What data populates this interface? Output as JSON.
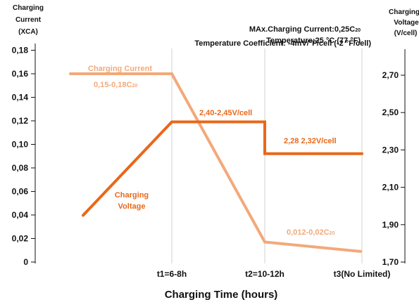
{
  "chart_data": {
    "type": "line",
    "y_left_label": [
      "Charging",
      "Current",
      "(XCA)"
    ],
    "y_right_label": [
      "Charging",
      "Voltage",
      "(V/cell)"
    ],
    "xlabel": "Charging Time (hours)",
    "x_ticks": [
      "t1=6-8h",
      "t2=10-12h",
      "t3(No Limited)"
    ],
    "y_left_ticks": [
      "0",
      "0,02",
      "0,04",
      "0,06",
      "0,08",
      "0,10",
      "0,12",
      "0,14",
      "0,16",
      "0,18"
    ],
    "y_left_values": [
      0,
      0.02,
      0.04,
      0.06,
      0.08,
      0.1,
      0.12,
      0.14,
      0.16,
      0.18
    ],
    "y_right_ticks": [
      "1,70",
      "1,90",
      "2,10",
      "2,30",
      "2,50",
      "2,70"
    ],
    "y_right_values": [
      1.7,
      1.9,
      2.1,
      2.3,
      2.5,
      2.7
    ],
    "notes": [
      "MAx.Charging Current:0,25C20",
      "Temperature:25 °C (77 °F)",
      "Temperature Coefficient: -4mV/°F/cell (-2 °F/cell)"
    ],
    "series": [
      {
        "name": "Charging Current",
        "axis": "left",
        "color": "#F2A97A",
        "x": [
          "0",
          "t1=6-8h",
          "t2=10-12h",
          "t3(No Limited)"
        ],
        "values": [
          0.16,
          0.16,
          0.017,
          0.009
        ]
      },
      {
        "name": "Charging Voltage",
        "axis": "right",
        "color": "#E8681A",
        "x": [
          "0",
          "t1=6-8h",
          "t2=10-12h",
          "t2=10-12h",
          "t3(No Limited)"
        ],
        "values": [
          1.95,
          2.45,
          2.45,
          2.28,
          2.28
        ]
      }
    ],
    "annotations": [
      {
        "text": "0,15-0,18C20",
        "series": "Charging Current"
      },
      {
        "text": "2,40-2,45V/cell",
        "series": "Charging Voltage"
      },
      {
        "text": "2,28 2,32V/cell",
        "series": "Charging Voltage"
      },
      {
        "text": "0,012-0,02C20",
        "series": "Charging Current"
      }
    ],
    "legend_labels": {
      "current": "Charging Current",
      "voltage": [
        "Charging",
        "Voltage"
      ]
    },
    "grid": "vertical lines at x ticks",
    "legend": "inline labels"
  }
}
